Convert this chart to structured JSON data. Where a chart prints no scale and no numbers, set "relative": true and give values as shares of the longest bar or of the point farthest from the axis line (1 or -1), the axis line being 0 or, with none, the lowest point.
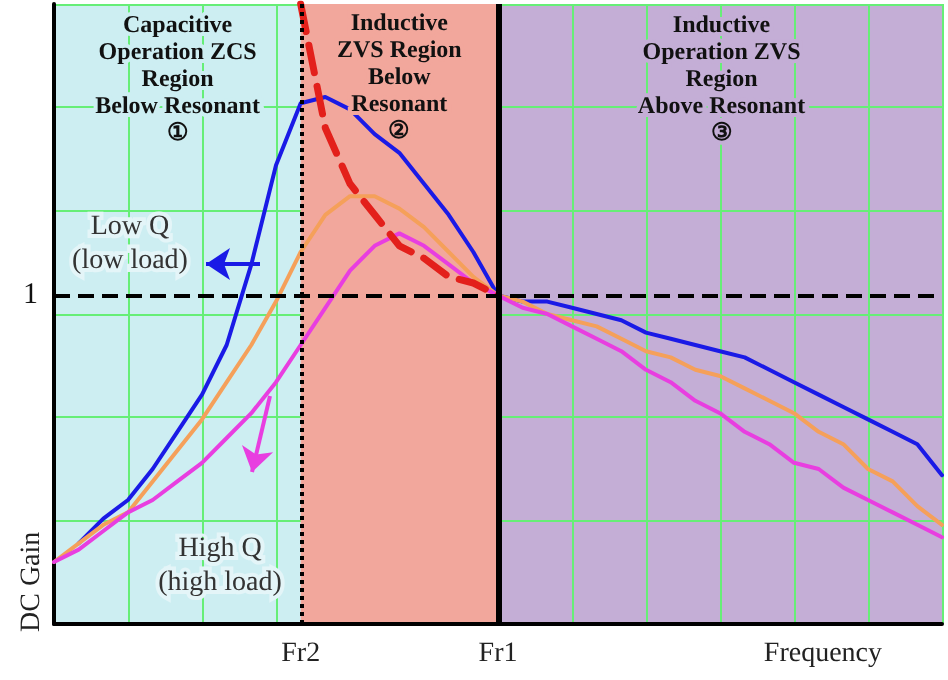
{
  "chart_data": {
    "type": "line",
    "relative": true,
    "xlabel": "Frequency",
    "ylabel": "DC Gain",
    "categories": [
      null,
      null,
      null,
      null,
      null,
      null,
      null,
      null,
      null,
      null,
      "Fr2",
      null,
      null,
      null,
      null,
      null,
      null,
      null,
      "Fr1",
      null,
      null,
      null,
      null,
      null,
      null,
      null,
      null,
      null,
      null,
      null,
      null,
      null,
      null,
      null,
      null,
      null,
      null
    ],
    "grid": true,
    "legend": false,
    "marker": "none",
    "series": [
      {
        "color": "#1a1ae6",
        "values": [
          null,
          0.13,
          0.17,
          0.2,
          0.25,
          0.31,
          0.37,
          0.45,
          0.58,
          0.74,
          0.84,
          0.85,
          0.83,
          0.79,
          0.76,
          0.71,
          0.66,
          0.6,
          0.53,
          0.52,
          0.52,
          0.51,
          0.5,
          0.49,
          0.47,
          0.46,
          0.45,
          0.44,
          0.43,
          0.41,
          0.39,
          0.37,
          0.35,
          0.33,
          0.31,
          0.29,
          0.24
        ]
      },
      {
        "color": "#f5a05a",
        "values": [
          0.1,
          0.13,
          0.16,
          0.18,
          0.23,
          0.28,
          0.33,
          0.39,
          0.45,
          0.52,
          0.6,
          0.66,
          0.69,
          0.69,
          0.67,
          0.64,
          0.6,
          0.56,
          0.53,
          0.52,
          0.5,
          0.49,
          0.48,
          0.46,
          0.44,
          0.43,
          0.41,
          0.4,
          0.38,
          0.36,
          0.34,
          0.31,
          0.29,
          0.25,
          0.23,
          0.19,
          0.16
        ]
      },
      {
        "color": "#e83ee0",
        "values": [
          0.1,
          0.12,
          0.15,
          0.18,
          0.2,
          0.23,
          0.26,
          0.3,
          0.34,
          0.39,
          0.45,
          0.51,
          0.57,
          0.61,
          0.63,
          0.61,
          0.58,
          0.55,
          0.53,
          0.51,
          0.5,
          0.48,
          0.46,
          0.44,
          0.41,
          0.39,
          0.36,
          0.34,
          0.31,
          0.29,
          0.26,
          0.25,
          0.22,
          0.2,
          0.18,
          0.16,
          0.14
        ]
      },
      {
        "color": "#e3201b",
        "line_style": "dashed",
        "values": [
          null,
          null,
          null,
          null,
          null,
          null,
          null,
          null,
          null,
          null,
          1,
          0.8,
          0.71,
          0.66,
          0.61,
          0.59,
          0.56,
          0.55,
          0.53,
          null,
          null,
          null,
          null,
          null,
          null,
          null,
          null,
          null,
          null,
          null,
          null,
          null,
          null,
          null,
          null,
          null,
          null
        ]
      }
    ],
    "bands": [
      {
        "axis": "x",
        "from": "Fr2",
        "to": "Fr1",
        "label": "Inductive\nZVS Region\nBelow\nResonant\n②",
        "color": "#f2a79c"
      }
    ],
    "ref_lines": [
      {
        "axis": "y",
        "value": 0.53,
        "label": "1",
        "line_style": "dashed",
        "color": "#000000"
      },
      {
        "axis": "x",
        "value": "Fr2",
        "line_style": "dotted",
        "color": "#000000"
      },
      {
        "axis": "x",
        "value": "Fr1",
        "line_style": "solid",
        "color": "#000000"
      }
    ],
    "annotations": [
      "Capacitive\nOperation ZCS\nRegion\nBelow Resonant\n①",
      "Inductive\nOperation ZVS\nRegion\nAbove Resonant\n③",
      "Low Q\n(low load)",
      "High Q\n(high load)"
    ]
  }
}
